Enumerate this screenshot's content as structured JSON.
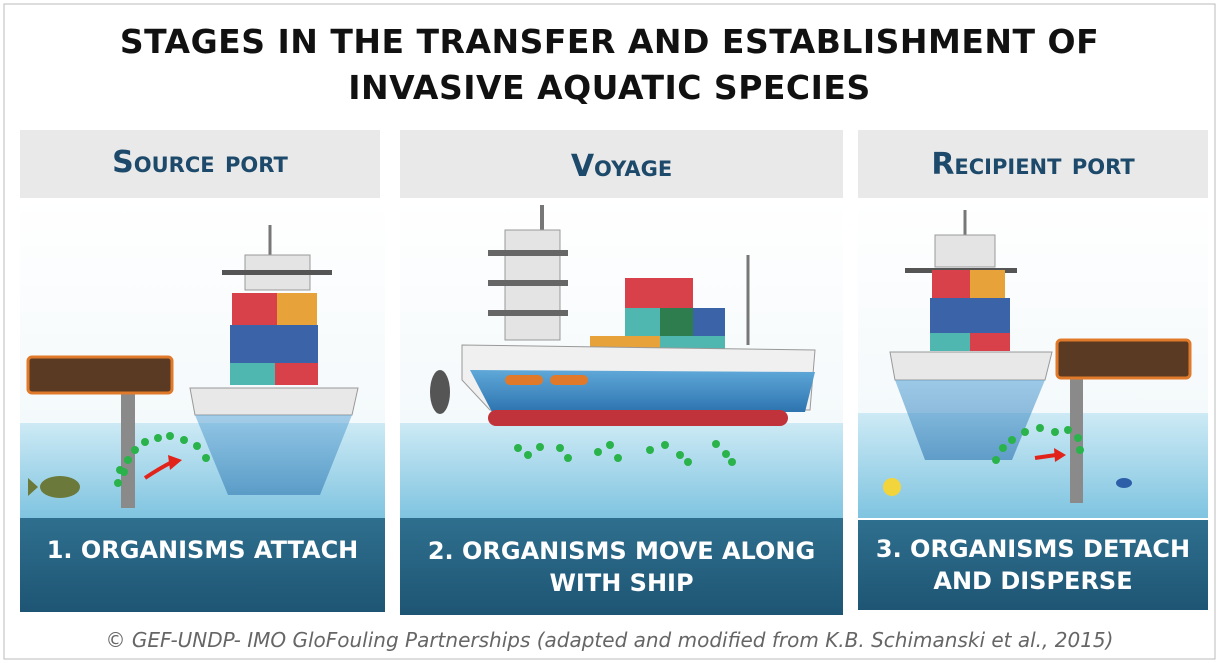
{
  "title": {
    "lines": [
      "STAGES IN THE TRANSFER AND ESTABLISHMENT OF",
      "INVASIVE AQUATIC SPECIES"
    ]
  },
  "stages": [
    {
      "header": "Source port",
      "caption": "1.  ORGANISMS ATTACH"
    },
    {
      "header": "Voyage",
      "caption": "2. ORGANISMS MOVE ALONG WITH SHIP"
    },
    {
      "header": "Recipient port",
      "caption": "3. ORGANISMS DETACH AND DISPERSE"
    }
  ],
  "credit": "© GEF-UNDP- IMO GloFouling Partnerships (adapted and modified from K.B. Schimanski et al., 2015)"
}
